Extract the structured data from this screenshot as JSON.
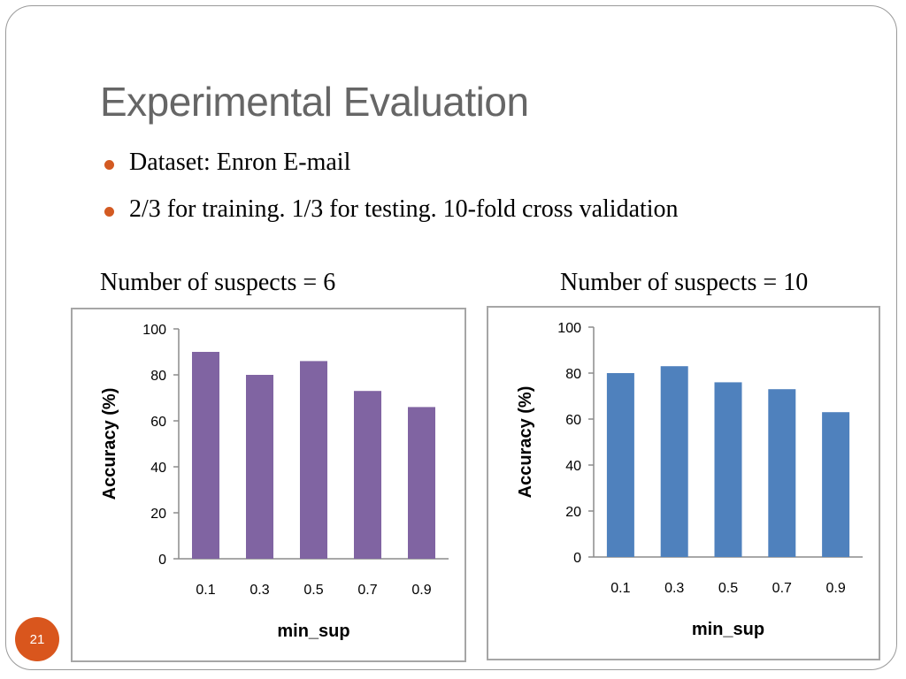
{
  "slide": {
    "title": "Experimental Evaluation",
    "bullets": [
      "Dataset: Enron E-mail",
      "2/3 for training. 1/3 for testing. 10-fold cross validation"
    ],
    "captions": [
      "Number of suspects = 6",
      "Number of suspects = 10"
    ],
    "slide_number": "21",
    "bullet_color": "#d35a22",
    "slide_number_color": "#d9561d"
  },
  "chart_data": [
    {
      "type": "bar",
      "categories": [
        "0.1",
        "0.3",
        "0.5",
        "0.7",
        "0.9"
      ],
      "values": [
        90,
        80,
        86,
        73,
        66
      ],
      "xlabel": "min_sup",
      "ylabel": "Accuracy (%)",
      "ylim": [
        0,
        100
      ],
      "yticks": [
        0,
        20,
        40,
        60,
        80,
        100
      ],
      "grid": false,
      "color": "#8064a2"
    },
    {
      "type": "bar",
      "categories": [
        "0.1",
        "0.3",
        "0.5",
        "0.7",
        "0.9"
      ],
      "values": [
        80,
        83,
        76,
        73,
        63
      ],
      "xlabel": "min_sup",
      "ylabel": "Accuracy (%)",
      "ylim": [
        0,
        100
      ],
      "yticks": [
        0,
        20,
        40,
        60,
        80,
        100
      ],
      "grid": false,
      "color": "#4f81bd"
    }
  ]
}
